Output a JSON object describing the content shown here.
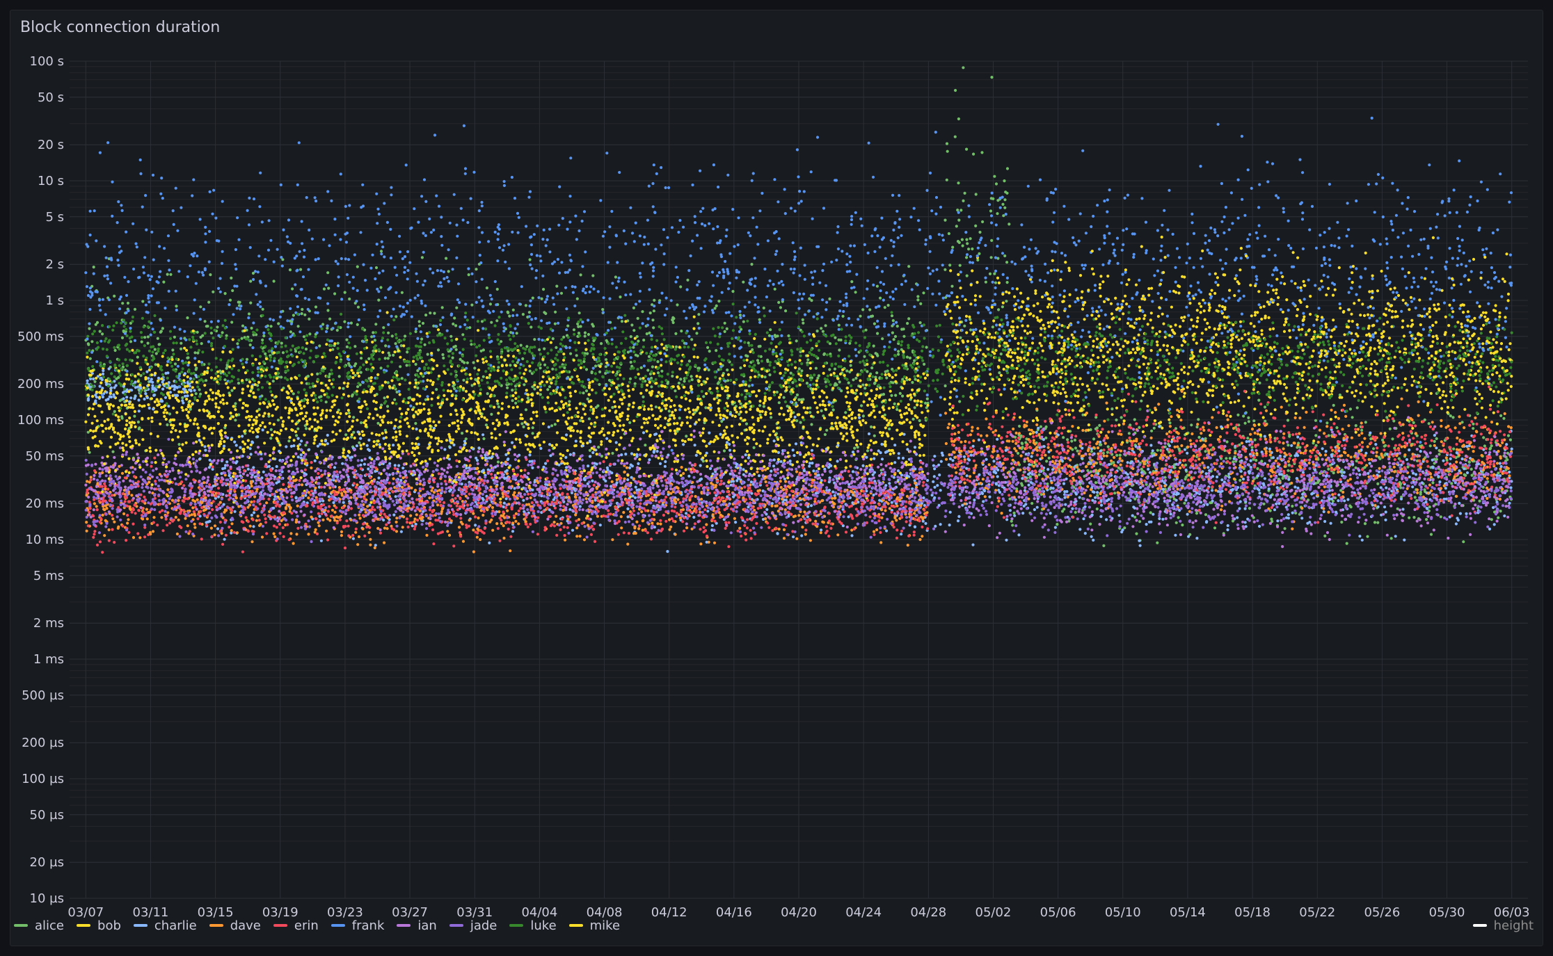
{
  "panel": {
    "title": "Block connection duration"
  },
  "chart_data": {
    "type": "scatter",
    "title": "Block connection duration",
    "y_scale": "log",
    "ylim_seconds": [
      1e-05,
      100
    ],
    "y_ticks": [
      {
        "value": 100,
        "label": "100 s"
      },
      {
        "value": 50,
        "label": "50 s"
      },
      {
        "value": 20,
        "label": "20 s"
      },
      {
        "value": 10,
        "label": "10 s"
      },
      {
        "value": 5,
        "label": "5 s"
      },
      {
        "value": 2,
        "label": "2 s"
      },
      {
        "value": 1,
        "label": "1 s"
      },
      {
        "value": 0.5,
        "label": "500 ms"
      },
      {
        "value": 0.2,
        "label": "200 ms"
      },
      {
        "value": 0.1,
        "label": "100 ms"
      },
      {
        "value": 0.05,
        "label": "50 ms"
      },
      {
        "value": 0.02,
        "label": "20 ms"
      },
      {
        "value": 0.01,
        "label": "10 ms"
      },
      {
        "value": 0.005,
        "label": "5 ms"
      },
      {
        "value": 0.002,
        "label": "2 ms"
      },
      {
        "value": 0.001,
        "label": "1 ms"
      },
      {
        "value": 0.0005,
        "label": "500 µs"
      },
      {
        "value": 0.0002,
        "label": "200 µs"
      },
      {
        "value": 0.0001,
        "label": "100 µs"
      },
      {
        "value": 5e-05,
        "label": "50 µs"
      },
      {
        "value": 2e-05,
        "label": "20 µs"
      },
      {
        "value": 1e-05,
        "label": "10 µs"
      }
    ],
    "x_range": [
      "03/06",
      "06/04"
    ],
    "x_ticks": [
      "03/07",
      "03/11",
      "03/15",
      "03/19",
      "03/23",
      "03/27",
      "03/31",
      "04/04",
      "04/08",
      "04/12",
      "04/16",
      "04/20",
      "04/24",
      "04/28",
      "05/02",
      "05/06",
      "05/10",
      "05/14",
      "05/18",
      "05/22",
      "05/26",
      "05/30",
      "06/03"
    ],
    "grid": true,
    "legend_position": "bottom",
    "series": [
      {
        "name": "alice",
        "color": "#73bf69",
        "bands": [
          {
            "from": "03/07",
            "to": "04/28",
            "center": 0.3,
            "spread": 0.35
          },
          {
            "from": "04/29",
            "to": "05/03",
            "center": 3,
            "spread": 0.5
          },
          {
            "from": "05/03",
            "to": "06/03",
            "center": 0.04,
            "spread": 0.25
          }
        ]
      },
      {
        "name": "bob",
        "color": "#fade2a",
        "bands": [
          {
            "from": "03/07",
            "to": "04/28",
            "center": 0.1,
            "spread": 0.3
          },
          {
            "from": "04/29",
            "to": "06/03",
            "center": 0.3,
            "spread": 0.3
          }
        ]
      },
      {
        "name": "charlie",
        "color": "#8ab8ff",
        "bands": [
          {
            "from": "03/07",
            "to": "03/14",
            "center": 0.18,
            "spread": 0.08
          },
          {
            "from": "03/14",
            "to": "06/03",
            "center": 0.03,
            "spread": 0.2
          }
        ]
      },
      {
        "name": "dave",
        "color": "#ff9830",
        "bands": [
          {
            "from": "03/07",
            "to": "04/28",
            "center": 0.02,
            "spread": 0.15
          },
          {
            "from": "04/29",
            "to": "06/03",
            "center": 0.05,
            "spread": 0.2
          }
        ]
      },
      {
        "name": "erin",
        "color": "#f2495c",
        "bands": [
          {
            "from": "03/07",
            "to": "04/28",
            "center": 0.02,
            "spread": 0.15
          },
          {
            "from": "04/29",
            "to": "06/03",
            "center": 0.05,
            "spread": 0.2
          }
        ]
      },
      {
        "name": "frank",
        "color": "#5794f2",
        "bands": [
          {
            "from": "03/07",
            "to": "06/03",
            "center": 1.5,
            "spread": 0.45
          }
        ]
      },
      {
        "name": "ian",
        "color": "#b877d9",
        "bands": [
          {
            "from": "03/07",
            "to": "04/28",
            "center": 0.03,
            "spread": 0.15
          },
          {
            "from": "04/29",
            "to": "06/03",
            "center": 0.03,
            "spread": 0.2
          }
        ]
      },
      {
        "name": "jade",
        "color": "#8f6ad8",
        "bands": [
          {
            "from": "03/07",
            "to": "06/03",
            "center": 0.025,
            "spread": 0.15
          }
        ]
      },
      {
        "name": "luke",
        "color": "#37872d",
        "bands": [
          {
            "from": "03/07",
            "to": "06/03",
            "center": 0.3,
            "spread": 0.18
          }
        ]
      },
      {
        "name": "mike",
        "color": "#fade2a",
        "bands": [
          {
            "from": "03/07",
            "to": "04/28",
            "center": 0.12,
            "spread": 0.25
          },
          {
            "from": "04/29",
            "to": "06/03",
            "center": 0.5,
            "spread": 0.3
          }
        ]
      }
    ],
    "extra_legend": {
      "name": "height",
      "color": "#ffffff"
    }
  }
}
